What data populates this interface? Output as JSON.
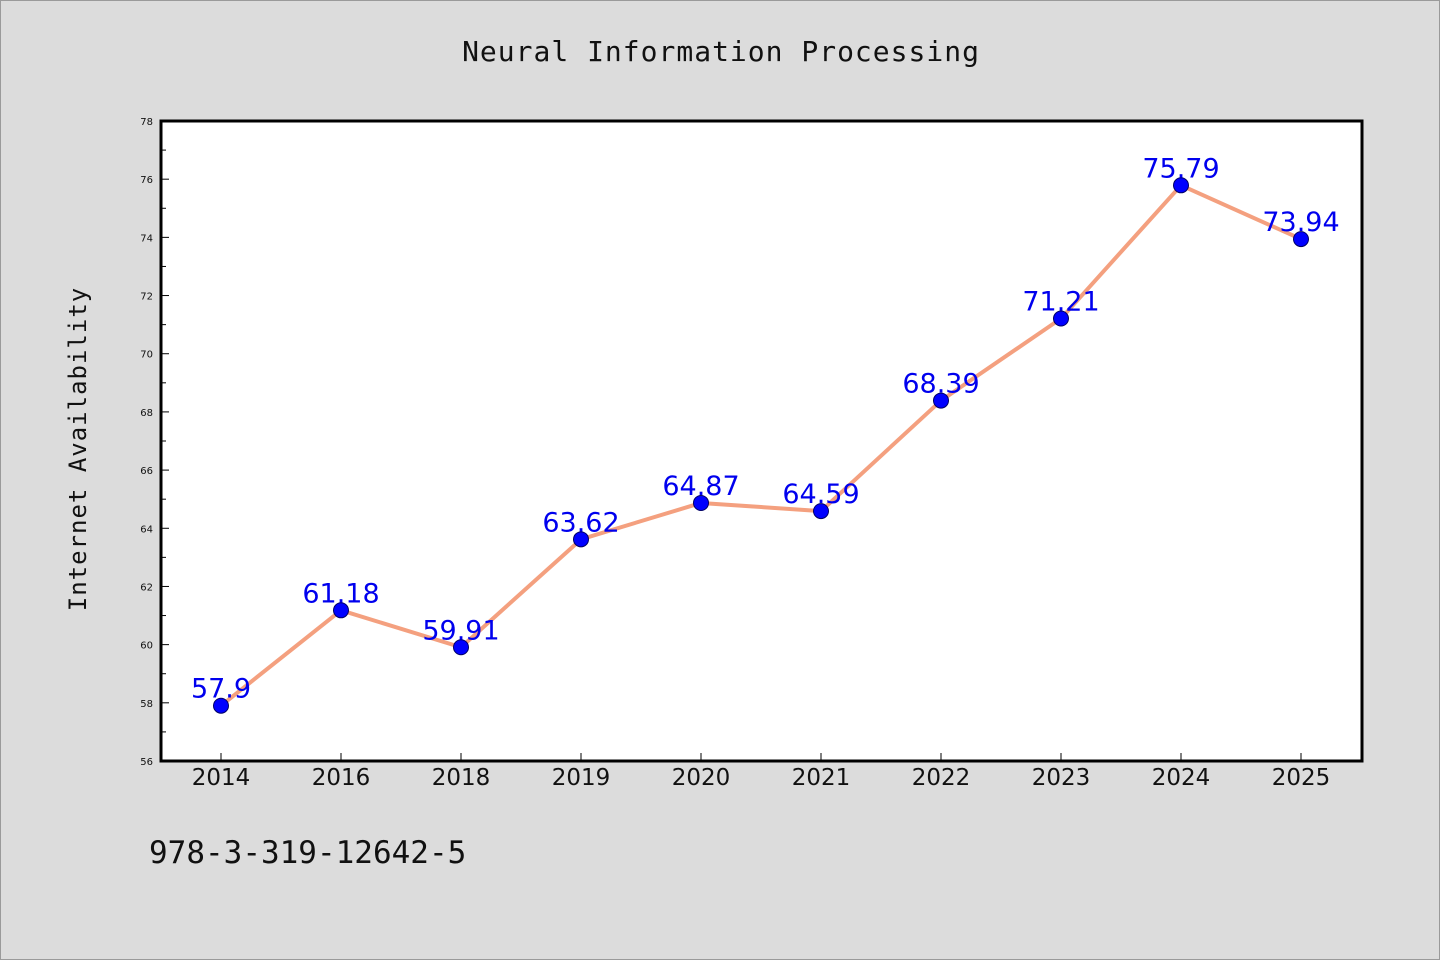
{
  "chart_data": {
    "type": "line",
    "title": "Neural Information Processing",
    "ylabel": "Internet Availability",
    "xlabel": "",
    "categories": [
      "2014",
      "2016",
      "2018",
      "2019",
      "2020",
      "2021",
      "2022",
      "2023",
      "2024",
      "2025"
    ],
    "values": [
      57.9,
      61.18,
      59.91,
      63.62,
      64.87,
      64.59,
      68.39,
      71.21,
      75.79,
      73.94
    ],
    "data_labels": [
      "57.9",
      "61.18",
      "59.91",
      "63.62",
      "64.87",
      "64.59",
      "68.39",
      "71.21",
      "75.79",
      "73.94"
    ],
    "ylim": [
      56,
      78
    ],
    "yticks": [
      "56",
      "58",
      "60",
      "62",
      "64",
      "66",
      "68",
      "70",
      "72",
      "74",
      "76",
      "78"
    ],
    "grid": false,
    "legend": "none",
    "colors": {
      "line": "#f4a07f",
      "marker": "#0000ff",
      "marker_edge": "#000066",
      "label": "#0000ee",
      "background": "#dcdcdc",
      "plot_background": "#ffffff"
    }
  },
  "footer": {
    "code": "978-3-319-12642-5"
  }
}
